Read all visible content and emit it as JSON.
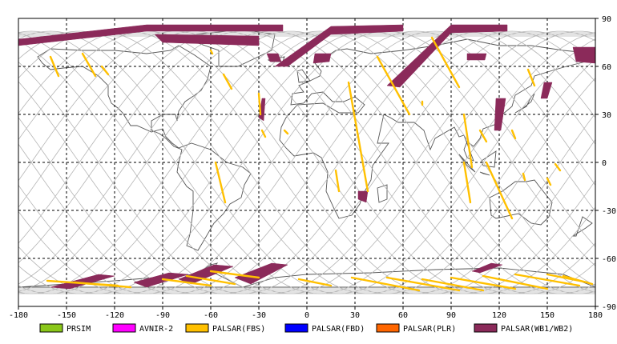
{
  "map": {
    "projection": "equirectangular",
    "lon_range": [
      -180,
      180
    ],
    "lat_range": [
      -90,
      90
    ],
    "grid": "dashed",
    "x_ticks": [
      "-180",
      "-150",
      "-120",
      "-90",
      "-60",
      "-30",
      "0",
      "30",
      "60",
      "90",
      "120",
      "150",
      "180"
    ],
    "y_ticks": [
      "90",
      "60",
      "30",
      "0",
      "-30",
      "-60",
      "-90"
    ],
    "colors": {
      "background": "#ffffff",
      "grid": "#000000",
      "coastline": "#555555",
      "orbit_track": "#b4b4b4",
      "frame": "#000000"
    }
  },
  "legend": [
    {
      "label": "PRSIM",
      "color": "#8ac71a"
    },
    {
      "label": "AVNIR-2",
      "color": "#ff00ff"
    },
    {
      "label": "PALSAR(FBS)",
      "color": "#ffc000"
    },
    {
      "label": "PALSAR(FBD)",
      "color": "#0000ff"
    },
    {
      "label": "PALSAR(PLR)",
      "color": "#ff6600"
    },
    {
      "label": "PALSAR(WB1/WB2)",
      "color": "#8b2a5a"
    }
  ],
  "observations": {
    "fbs_segments": [
      [
        [
          -160,
          66
        ],
        [
          -155,
          54
        ]
      ],
      [
        [
          -140,
          68
        ],
        [
          -132,
          54
        ]
      ],
      [
        [
          -128,
          60
        ],
        [
          -124,
          55
        ]
      ],
      [
        [
          -60,
          70
        ],
        [
          -59,
          68
        ]
      ],
      [
        [
          -52,
          55
        ],
        [
          -47,
          46
        ]
      ],
      [
        [
          -30,
          43
        ],
        [
          -29,
          30
        ]
      ],
      [
        [
          -28,
          20
        ],
        [
          -26,
          16
        ]
      ],
      [
        [
          -14,
          20
        ],
        [
          -12,
          18
        ]
      ],
      [
        [
          -57,
          0
        ],
        [
          -51,
          -25
        ]
      ],
      [
        [
          20,
          -18
        ],
        [
          18,
          -5
        ]
      ],
      [
        [
          26,
          50
        ],
        [
          38,
          -18
        ]
      ],
      [
        [
          44,
          66
        ],
        [
          64,
          30
        ]
      ],
      [
        [
          72,
          38
        ],
        [
          72,
          36
        ]
      ],
      [
        [
          78,
          78
        ],
        [
          95,
          47
        ]
      ],
      [
        [
          98,
          30
        ],
        [
          103,
          -3
        ]
      ],
      [
        [
          98,
          0
        ],
        [
          102,
          -25
        ]
      ],
      [
        [
          108,
          20
        ],
        [
          112,
          13
        ]
      ],
      [
        [
          112,
          0
        ],
        [
          128,
          -35
        ]
      ],
      [
        [
          138,
          58
        ],
        [
          142,
          48
        ]
      ],
      [
        [
          155,
          -1
        ],
        [
          158,
          -5
        ]
      ],
      [
        [
          128,
          20
        ],
        [
          130,
          15
        ]
      ],
      [
        [
          150,
          -10
        ],
        [
          152,
          -14
        ]
      ],
      [
        [
          135,
          -7
        ],
        [
          136,
          -11
        ]
      ]
    ],
    "fbs_antarctic": [
      [
        [
          -162,
          -74
        ],
        [
          -118,
          -77
        ]
      ],
      [
        [
          -145,
          -75
        ],
        [
          -110,
          -78
        ]
      ],
      [
        [
          -90,
          -73
        ],
        [
          -60,
          -77
        ]
      ],
      [
        [
          -75,
          -71
        ],
        [
          -45,
          -76
        ]
      ],
      [
        [
          -60,
          -68
        ],
        [
          -30,
          -72
        ]
      ],
      [
        [
          -5,
          -73
        ],
        [
          15,
          -77
        ]
      ],
      [
        [
          28,
          -72
        ],
        [
          70,
          -80
        ]
      ],
      [
        [
          50,
          -72
        ],
        [
          95,
          -80
        ]
      ],
      [
        [
          72,
          -73
        ],
        [
          110,
          -80
        ]
      ],
      [
        [
          90,
          -72
        ],
        [
          130,
          -79
        ]
      ],
      [
        [
          110,
          -71
        ],
        [
          150,
          -79
        ]
      ],
      [
        [
          130,
          -70
        ],
        [
          170,
          -77
        ]
      ],
      [
        [
          150,
          -70
        ],
        [
          175,
          -75
        ]
      ],
      [
        [
          160,
          -71
        ],
        [
          178,
          -76
        ]
      ]
    ],
    "wb_polygons": [
      [
        [
          -180,
          77
        ],
        [
          -100,
          86
        ],
        [
          -15,
          86
        ],
        [
          -15,
          82
        ],
        [
          -100,
          82
        ],
        [
          -180,
          73
        ]
      ],
      [
        [
          -95,
          80
        ],
        [
          -30,
          79
        ],
        [
          -30,
          73
        ],
        [
          -90,
          75
        ]
      ],
      [
        [
          -20,
          60
        ],
        [
          15,
          85
        ],
        [
          60,
          86
        ],
        [
          60,
          82
        ],
        [
          15,
          80
        ],
        [
          -12,
          60
        ]
      ],
      [
        [
          50,
          48
        ],
        [
          90,
          86
        ],
        [
          125,
          86
        ],
        [
          125,
          82
        ],
        [
          90,
          81
        ],
        [
          58,
          47
        ]
      ],
      [
        [
          -28,
          40
        ],
        [
          -26,
          40
        ],
        [
          -27,
          26
        ],
        [
          -30,
          28
        ]
      ],
      [
        [
          -25,
          68
        ],
        [
          -18,
          68
        ],
        [
          -16,
          63
        ],
        [
          -23,
          63
        ]
      ],
      [
        [
          5,
          68
        ],
        [
          15,
          68
        ],
        [
          14,
          63
        ],
        [
          4,
          62
        ]
      ],
      [
        [
          100,
          68
        ],
        [
          112,
          68
        ],
        [
          111,
          64
        ],
        [
          100,
          64
        ]
      ],
      [
        [
          118,
          40
        ],
        [
          124,
          40
        ],
        [
          121,
          20
        ],
        [
          117,
          20
        ]
      ],
      [
        [
          148,
          50
        ],
        [
          153,
          50
        ],
        [
          150,
          40
        ],
        [
          146,
          40
        ]
      ],
      [
        [
          166,
          72
        ],
        [
          180,
          72
        ],
        [
          180,
          62
        ],
        [
          168,
          63
        ]
      ],
      [
        [
          32,
          -18
        ],
        [
          38,
          -18
        ],
        [
          37,
          -25
        ],
        [
          32,
          -23
        ]
      ],
      [
        [
          -160,
          -78
        ],
        [
          -130,
          -70
        ],
        [
          -120,
          -71
        ],
        [
          -148,
          -79
        ]
      ],
      [
        [
          -108,
          -75
        ],
        [
          -86,
          -69
        ],
        [
          -74,
          -70
        ],
        [
          -100,
          -78
        ]
      ],
      [
        [
          -80,
          -73
        ],
        [
          -58,
          -64
        ],
        [
          -46,
          -65
        ],
        [
          -72,
          -76
        ]
      ],
      [
        [
          -45,
          -72
        ],
        [
          -22,
          -63
        ],
        [
          -12,
          -64
        ],
        [
          -35,
          -76
        ]
      ],
      [
        [
          103,
          -68
        ],
        [
          115,
          -63
        ],
        [
          122,
          -64
        ],
        [
          108,
          -69
        ]
      ]
    ],
    "land": [
      [
        [
          -168,
          66
        ],
        [
          -160,
          71
        ],
        [
          -140,
          70
        ],
        [
          -120,
          70
        ],
        [
          -100,
          68
        ],
        [
          -85,
          70
        ],
        [
          -80,
          73
        ],
        [
          -70,
          67
        ],
        [
          -60,
          60
        ],
        [
          -62,
          52
        ],
        [
          -66,
          45
        ],
        [
          -70,
          42
        ],
        [
          -76,
          38
        ],
        [
          -80,
          32
        ],
        [
          -81,
          26
        ],
        [
          -82,
          30
        ],
        [
          -90,
          30
        ],
        [
          -97,
          26
        ],
        [
          -97,
          20
        ],
        [
          -92,
          18
        ],
        [
          -88,
          15
        ],
        [
          -83,
          10
        ],
        [
          -78,
          8
        ],
        [
          -80,
          0
        ],
        [
          -81,
          -6
        ],
        [
          -75,
          -15
        ],
        [
          -71,
          -18
        ],
        [
          -71,
          -30
        ],
        [
          -73,
          -45
        ],
        [
          -75,
          -52
        ],
        [
          -68,
          -55
        ],
        [
          -65,
          -50
        ],
        [
          -58,
          -38
        ],
        [
          -52,
          -32
        ],
        [
          -48,
          -26
        ],
        [
          -41,
          -22
        ],
        [
          -39,
          -14
        ],
        [
          -35,
          -7
        ],
        [
          -40,
          -3
        ],
        [
          -50,
          0
        ],
        [
          -60,
          8
        ],
        [
          -72,
          12
        ],
        [
          -80,
          9
        ],
        [
          -84,
          12
        ],
        [
          -88,
          16
        ],
        [
          -90,
          21
        ],
        [
          -97,
          19
        ],
        [
          -106,
          23
        ],
        [
          -110,
          23
        ],
        [
          -115,
          31
        ],
        [
          -118,
          34
        ],
        [
          -122,
          37
        ],
        [
          -124,
          42
        ],
        [
          -124,
          48
        ],
        [
          -130,
          54
        ],
        [
          -140,
          60
        ],
        [
          -152,
          59
        ],
        [
          -160,
          58
        ],
        [
          -165,
          62
        ]
      ],
      [
        [
          -10,
          36
        ],
        [
          -9,
          43
        ],
        [
          -2,
          44
        ],
        [
          -5,
          48
        ],
        [
          2,
          51
        ],
        [
          8,
          54
        ],
        [
          9,
          57
        ],
        [
          5,
          62
        ],
        [
          12,
          66
        ],
        [
          18,
          70
        ],
        [
          25,
          71
        ],
        [
          40,
          68
        ],
        [
          60,
          70
        ],
        [
          80,
          73
        ],
        [
          100,
          77
        ],
        [
          120,
          73
        ],
        [
          140,
          73
        ],
        [
          160,
          70
        ],
        [
          180,
          68
        ],
        [
          178,
          64
        ],
        [
          162,
          60
        ],
        [
          155,
          58
        ],
        [
          142,
          54
        ],
        [
          140,
          48
        ],
        [
          130,
          42
        ],
        [
          128,
          35
        ],
        [
          122,
          30
        ],
        [
          121,
          25
        ],
        [
          110,
          21
        ],
        [
          108,
          15
        ],
        [
          104,
          10
        ],
        [
          100,
          13
        ],
        [
          98,
          8
        ],
        [
          100,
          3
        ],
        [
          104,
          1
        ],
        [
          98,
          17
        ],
        [
          95,
          16
        ],
        [
          92,
          22
        ],
        [
          80,
          15
        ],
        [
          77,
          8
        ],
        [
          73,
          20
        ],
        [
          67,
          25
        ],
        [
          57,
          25
        ],
        [
          52,
          28
        ],
        [
          48,
          30
        ],
        [
          44,
          12
        ],
        [
          51,
          12
        ],
        [
          41,
          -2
        ],
        [
          40,
          -11
        ],
        [
          35,
          -20
        ],
        [
          33,
          -26
        ],
        [
          28,
          -33
        ],
        [
          20,
          -35
        ],
        [
          17,
          -29
        ],
        [
          12,
          -18
        ],
        [
          13,
          -6
        ],
        [
          9,
          3
        ],
        [
          4,
          6
        ],
        [
          -8,
          4
        ],
        [
          -13,
          9
        ],
        [
          -17,
          14
        ],
        [
          -16,
          22
        ],
        [
          -13,
          28
        ],
        [
          -6,
          36
        ],
        [
          10,
          37
        ],
        [
          20,
          31
        ],
        [
          32,
          31
        ],
        [
          36,
          36
        ],
        [
          30,
          41
        ],
        [
          23,
          38
        ],
        [
          16,
          38
        ],
        [
          10,
          44
        ],
        [
          3,
          43
        ],
        [
          -2,
          37
        ]
      ],
      [
        [
          114,
          -22
        ],
        [
          122,
          -18
        ],
        [
          130,
          -12
        ],
        [
          137,
          -12
        ],
        [
          142,
          -11
        ],
        [
          145,
          -15
        ],
        [
          153,
          -25
        ],
        [
          151,
          -34
        ],
        [
          146,
          -39
        ],
        [
          140,
          -38
        ],
        [
          132,
          -32
        ],
        [
          118,
          -35
        ],
        [
          115,
          -33
        ]
      ],
      [
        [
          -55,
          60
        ],
        [
          -43,
          60
        ],
        [
          -22,
          70
        ],
        [
          -20,
          80
        ],
        [
          -40,
          83
        ],
        [
          -70,
          80
        ],
        [
          -72,
          76
        ],
        [
          -55,
          70
        ]
      ],
      [
        [
          44,
          -16
        ],
        [
          50,
          -14
        ],
        [
          50,
          -23
        ],
        [
          45,
          -25
        ]
      ],
      [
        [
          -180,
          -78
        ],
        [
          -120,
          -74
        ],
        [
          -70,
          -70
        ],
        [
          -60,
          -64
        ],
        [
          -56,
          -63
        ],
        [
          -60,
          -68
        ],
        [
          -40,
          -78
        ],
        [
          -20,
          -72
        ],
        [
          0,
          -70
        ],
        [
          40,
          -69
        ],
        [
          80,
          -67
        ],
        [
          120,
          -66
        ],
        [
          160,
          -70
        ],
        [
          180,
          -78
        ]
      ],
      [
        [
          -5,
          50
        ],
        [
          2,
          51
        ],
        [
          -3,
          58
        ],
        [
          -6,
          57
        ]
      ],
      [
        [
          130,
          31
        ],
        [
          135,
          34
        ],
        [
          140,
          38
        ],
        [
          142,
          43
        ],
        [
          140,
          41
        ],
        [
          137,
          35
        ]
      ],
      [
        [
          95,
          5
        ],
        [
          105,
          -6
        ],
        [
          100,
          -2
        ]
      ],
      [
        [
          110,
          -7
        ],
        [
          114,
          -8
        ],
        [
          108,
          -6
        ]
      ],
      [
        [
          109,
          1
        ],
        [
          118,
          7
        ],
        [
          117,
          -3
        ],
        [
          110,
          -2
        ]
      ],
      [
        [
          -24,
          64
        ],
        [
          -14,
          66
        ],
        [
          -15,
          63
        ],
        [
          -22,
          63
        ]
      ],
      [
        [
          166,
          -46
        ],
        [
          174,
          -41
        ],
        [
          178,
          -38
        ],
        [
          172,
          -34
        ],
        [
          168,
          -46
        ]
      ]
    ]
  }
}
